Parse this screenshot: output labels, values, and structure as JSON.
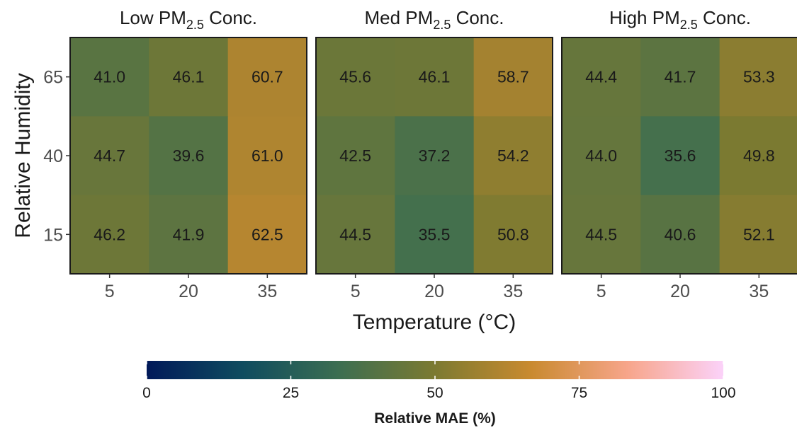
{
  "chart_data": {
    "type": "heatmap",
    "panels": [
      {
        "title_prefix": "Low PM",
        "title_subscript": "2.5",
        "title_suffix": " Conc.",
        "values": [
          [
            41.0,
            46.1,
            60.7
          ],
          [
            44.7,
            39.6,
            61.0
          ],
          [
            46.2,
            41.9,
            62.5
          ]
        ]
      },
      {
        "title_prefix": "Med PM",
        "title_subscript": "2.5",
        "title_suffix": " Conc.",
        "values": [
          [
            45.6,
            46.1,
            58.7
          ],
          [
            42.5,
            37.2,
            54.2
          ],
          [
            44.5,
            35.5,
            50.8
          ]
        ]
      },
      {
        "title_prefix": "High PM",
        "title_subscript": "2.5",
        "title_suffix": " Conc.",
        "values": [
          [
            44.4,
            41.7,
            53.3
          ],
          [
            44.0,
            35.6,
            49.8
          ],
          [
            44.5,
            40.6,
            52.1
          ]
        ]
      }
    ],
    "x_categories": [
      "5",
      "20",
      "35"
    ],
    "y_categories": [
      "65",
      "40",
      "15"
    ],
    "xlabel": "Temperature (°C)",
    "ylabel": "Relative Humidity",
    "colorbar": {
      "title": "Relative MAE (%)",
      "range": [
        0,
        100
      ],
      "ticks": [
        "0",
        "25",
        "50",
        "75",
        "100"
      ],
      "stops": [
        "#011959",
        "#0f4c5f",
        "#3c6e51",
        "#7c7a31",
        "#c98a2f",
        "#f7a58a",
        "#fbd2f9"
      ],
      "position": "bottom"
    }
  }
}
